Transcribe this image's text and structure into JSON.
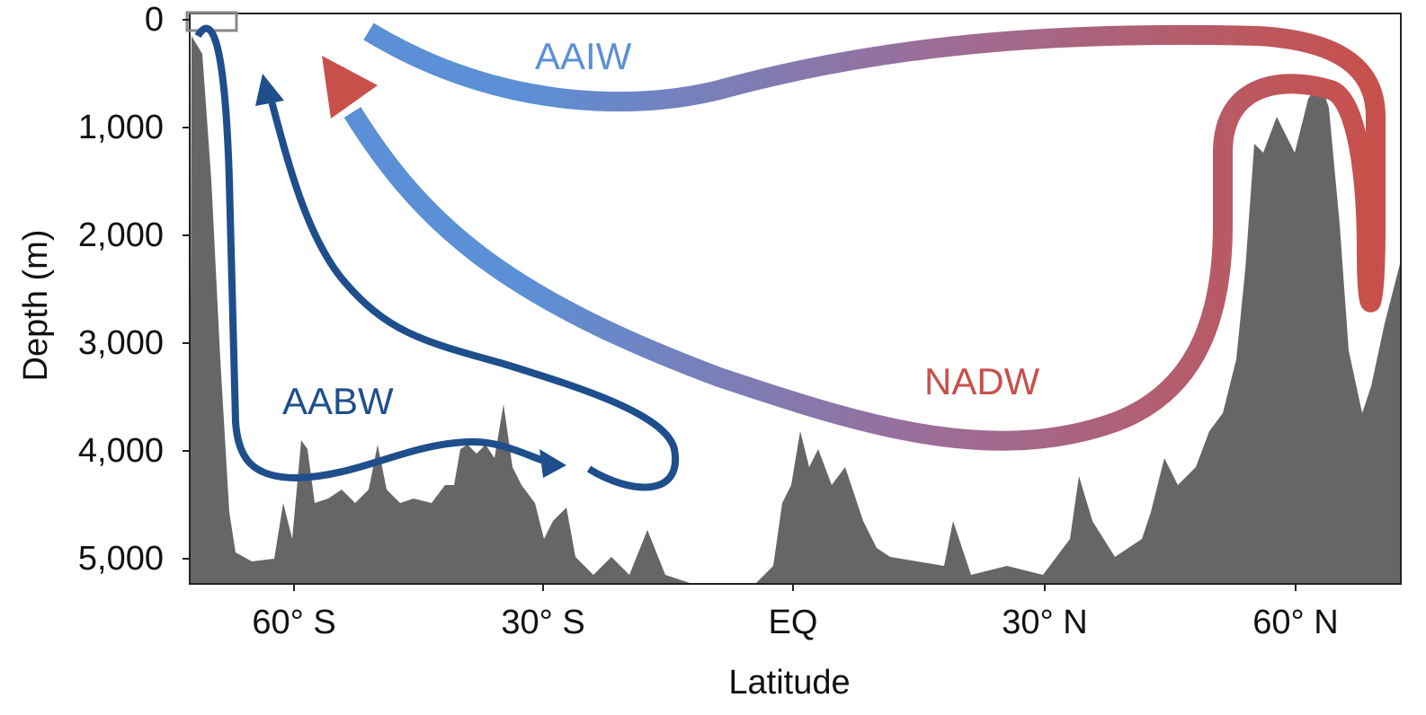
{
  "axes": {
    "y_label": "Depth (m)",
    "x_label": "Latitude",
    "y_ticks": [
      "0",
      "1,000",
      "2,000",
      "3,000",
      "4,000",
      "5,000"
    ],
    "x_ticks": [
      "60° S",
      "30° S",
      "EQ",
      "30° N",
      "60° N"
    ]
  },
  "labels": {
    "aaiw": "AAIW",
    "aabw": "AABW",
    "nadw": "NADW"
  }
}
